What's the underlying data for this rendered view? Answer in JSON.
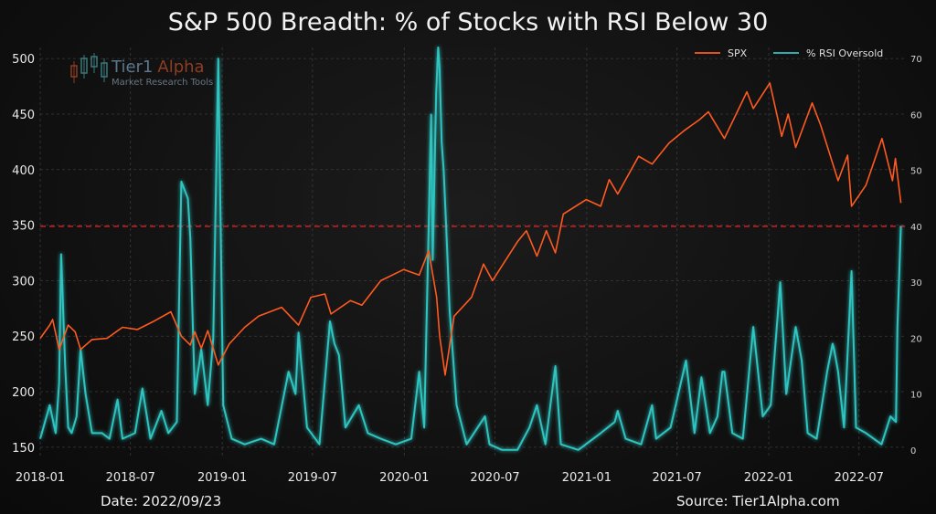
{
  "chart_data": {
    "type": "line",
    "title": "S&P 500 Breadth: % of Stocks with RSI Below 30",
    "footer_left": "Date: 2022/09/23",
    "footer_right": "Source: Tier1Alpha.com",
    "watermark": {
      "name": "Tier1 Alpha",
      "name_part1": "Tier1",
      "name_part2": "Alpha",
      "tagline": "Market Research Tools"
    },
    "legend": {
      "position": "top-right",
      "entries": [
        "SPX",
        "% RSI Oversold"
      ]
    },
    "x_ticks": [
      "2018-01",
      "2018-07",
      "2019-01",
      "2019-07",
      "2020-01",
      "2020-07",
      "2021-01",
      "2021-07",
      "2022-01",
      "2022-07"
    ],
    "y_left": {
      "ticks": [
        150,
        200,
        250,
        300,
        350,
        400,
        450,
        500
      ],
      "range": [
        140,
        510
      ]
    },
    "y_right": {
      "ticks": [
        0,
        10,
        20,
        30,
        40,
        50,
        60,
        70
      ],
      "range": [
        -1.5,
        72
      ]
    },
    "threshold": {
      "axis": "right",
      "value": 40
    },
    "colors": {
      "spx": "#ff5a1f",
      "rsi": "#2fc4c0",
      "threshold": "#e02020"
    },
    "series": [
      {
        "name": "SPX",
        "axis": "left",
        "points": [
          [
            "2018-01-01",
            248
          ],
          [
            "2018-01-20",
            260
          ],
          [
            "2018-01-26",
            265
          ],
          [
            "2018-02-08",
            238
          ],
          [
            "2018-02-26",
            260
          ],
          [
            "2018-03-12",
            254
          ],
          [
            "2018-03-23",
            238
          ],
          [
            "2018-04-15",
            247
          ],
          [
            "2018-05-15",
            248
          ],
          [
            "2018-06-15",
            258
          ],
          [
            "2018-07-15",
            256
          ],
          [
            "2018-08-15",
            263
          ],
          [
            "2018-09-20",
            272
          ],
          [
            "2018-10-11",
            250
          ],
          [
            "2018-10-29",
            242
          ],
          [
            "2018-11-07",
            254
          ],
          [
            "2018-11-20",
            239
          ],
          [
            "2018-12-03",
            255
          ],
          [
            "2018-12-24",
            224
          ],
          [
            "2019-01-15",
            243
          ],
          [
            "2019-02-15",
            258
          ],
          [
            "2019-03-15",
            268
          ],
          [
            "2019-04-30",
            276
          ],
          [
            "2019-06-03",
            260
          ],
          [
            "2019-06-28",
            285
          ],
          [
            "2019-07-26",
            288
          ],
          [
            "2019-08-07",
            270
          ],
          [
            "2019-09-15",
            282
          ],
          [
            "2019-10-08",
            278
          ],
          [
            "2019-11-15",
            300
          ],
          [
            "2019-12-31",
            310
          ],
          [
            "2020-01-31",
            305
          ],
          [
            "2020-02-19",
            327
          ],
          [
            "2020-03-06",
            285
          ],
          [
            "2020-03-12",
            250
          ],
          [
            "2020-03-23",
            215
          ],
          [
            "2020-04-10",
            268
          ],
          [
            "2020-05-15",
            285
          ],
          [
            "2020-06-08",
            315
          ],
          [
            "2020-06-26",
            300
          ],
          [
            "2020-08-15",
            335
          ],
          [
            "2020-09-02",
            345
          ],
          [
            "2020-09-23",
            322
          ],
          [
            "2020-10-12",
            345
          ],
          [
            "2020-10-30",
            325
          ],
          [
            "2020-11-15",
            360
          ],
          [
            "2020-12-31",
            373
          ],
          [
            "2021-01-29",
            367
          ],
          [
            "2021-02-15",
            391
          ],
          [
            "2021-03-04",
            378
          ],
          [
            "2021-04-15",
            412
          ],
          [
            "2021-05-12",
            405
          ],
          [
            "2021-06-15",
            424
          ],
          [
            "2021-07-15",
            435
          ],
          [
            "2021-08-15",
            445
          ],
          [
            "2021-09-02",
            452
          ],
          [
            "2021-10-04",
            428
          ],
          [
            "2021-11-18",
            470
          ],
          [
            "2021-12-01",
            455
          ],
          [
            "2022-01-03",
            478
          ],
          [
            "2022-01-27",
            430
          ],
          [
            "2022-02-09",
            450
          ],
          [
            "2022-02-24",
            420
          ],
          [
            "2022-03-29",
            460
          ],
          [
            "2022-04-15",
            440
          ],
          [
            "2022-05-20",
            390
          ],
          [
            "2022-06-08",
            413
          ],
          [
            "2022-06-16",
            367
          ],
          [
            "2022-07-15",
            386
          ],
          [
            "2022-08-16",
            428
          ],
          [
            "2022-09-06",
            390
          ],
          [
            "2022-09-12",
            410
          ],
          [
            "2022-09-23",
            370
          ]
        ]
      },
      {
        "name": "% RSI Oversold",
        "axis": "right",
        "points": [
          [
            "2018-01-01",
            2
          ],
          [
            "2018-01-20",
            8
          ],
          [
            "2018-02-01",
            3
          ],
          [
            "2018-02-08",
            12
          ],
          [
            "2018-02-12",
            35
          ],
          [
            "2018-02-20",
            15
          ],
          [
            "2018-02-26",
            4
          ],
          [
            "2018-03-05",
            3
          ],
          [
            "2018-03-15",
            6
          ],
          [
            "2018-03-23",
            18
          ],
          [
            "2018-04-02",
            10
          ],
          [
            "2018-04-15",
            3
          ],
          [
            "2018-05-05",
            3
          ],
          [
            "2018-05-20",
            2
          ],
          [
            "2018-06-05",
            9
          ],
          [
            "2018-06-15",
            2
          ],
          [
            "2018-07-10",
            3
          ],
          [
            "2018-07-25",
            11
          ],
          [
            "2018-08-10",
            2
          ],
          [
            "2018-09-01",
            7
          ],
          [
            "2018-09-15",
            3
          ],
          [
            "2018-10-02",
            5
          ],
          [
            "2018-10-11",
            48
          ],
          [
            "2018-10-24",
            45
          ],
          [
            "2018-10-29",
            38
          ],
          [
            "2018-11-07",
            10
          ],
          [
            "2018-11-20",
            18
          ],
          [
            "2018-12-03",
            8
          ],
          [
            "2018-12-14",
            20
          ],
          [
            "2018-12-24",
            70
          ],
          [
            "2019-01-03",
            8
          ],
          [
            "2019-01-20",
            2
          ],
          [
            "2019-02-15",
            1
          ],
          [
            "2019-03-20",
            2
          ],
          [
            "2019-04-15",
            1
          ],
          [
            "2019-05-14",
            14
          ],
          [
            "2019-05-28",
            10
          ],
          [
            "2019-06-03",
            21
          ],
          [
            "2019-06-20",
            4
          ],
          [
            "2019-07-15",
            1
          ],
          [
            "2019-08-05",
            23
          ],
          [
            "2019-08-14",
            19
          ],
          [
            "2019-08-23",
            17
          ],
          [
            "2019-09-05",
            4
          ],
          [
            "2019-10-02",
            8
          ],
          [
            "2019-10-20",
            3
          ],
          [
            "2019-11-15",
            2
          ],
          [
            "2019-12-15",
            1
          ],
          [
            "2020-01-15",
            2
          ],
          [
            "2020-01-31",
            14
          ],
          [
            "2020-02-10",
            4
          ],
          [
            "2020-02-24",
            60
          ],
          [
            "2020-02-27",
            34
          ],
          [
            "2020-03-05",
            64
          ],
          [
            "2020-03-09",
            72
          ],
          [
            "2020-03-12",
            68
          ],
          [
            "2020-03-16",
            55
          ],
          [
            "2020-03-20",
            50
          ],
          [
            "2020-03-25",
            40
          ],
          [
            "2020-04-01",
            25
          ],
          [
            "2020-04-15",
            8
          ],
          [
            "2020-05-05",
            1
          ],
          [
            "2020-06-11",
            6
          ],
          [
            "2020-06-20",
            1
          ],
          [
            "2020-07-15",
            0
          ],
          [
            "2020-08-15",
            0
          ],
          [
            "2020-09-08",
            4
          ],
          [
            "2020-09-23",
            8
          ],
          [
            "2020-10-10",
            1
          ],
          [
            "2020-10-30",
            15
          ],
          [
            "2020-11-10",
            1
          ],
          [
            "2020-12-15",
            0
          ],
          [
            "2021-01-29",
            3
          ],
          [
            "2021-02-26",
            5
          ],
          [
            "2021-03-04",
            7
          ],
          [
            "2021-03-20",
            2
          ],
          [
            "2021-04-20",
            1
          ],
          [
            "2021-05-12",
            8
          ],
          [
            "2021-05-20",
            2
          ],
          [
            "2021-06-18",
            4
          ],
          [
            "2021-07-19",
            16
          ],
          [
            "2021-08-05",
            3
          ],
          [
            "2021-08-19",
            13
          ],
          [
            "2021-09-05",
            3
          ],
          [
            "2021-09-20",
            6
          ],
          [
            "2021-09-30",
            14
          ],
          [
            "2021-10-04",
            14
          ],
          [
            "2021-10-20",
            3
          ],
          [
            "2021-11-10",
            2
          ],
          [
            "2021-12-01",
            22
          ],
          [
            "2021-12-20",
            6
          ],
          [
            "2022-01-05",
            8
          ],
          [
            "2022-01-24",
            30
          ],
          [
            "2022-02-05",
            10
          ],
          [
            "2022-02-24",
            22
          ],
          [
            "2022-03-08",
            16
          ],
          [
            "2022-03-20",
            3
          ],
          [
            "2022-04-07",
            2
          ],
          [
            "2022-04-28",
            14
          ],
          [
            "2022-05-09",
            19
          ],
          [
            "2022-05-12",
            18
          ],
          [
            "2022-05-20",
            14
          ],
          [
            "2022-06-01",
            4
          ],
          [
            "2022-06-16",
            32
          ],
          [
            "2022-06-25",
            4
          ],
          [
            "2022-07-15",
            3
          ],
          [
            "2022-08-15",
            1
          ],
          [
            "2022-09-02",
            6
          ],
          [
            "2022-09-13",
            5
          ],
          [
            "2022-09-16",
            22
          ],
          [
            "2022-09-23",
            40
          ]
        ]
      }
    ]
  }
}
